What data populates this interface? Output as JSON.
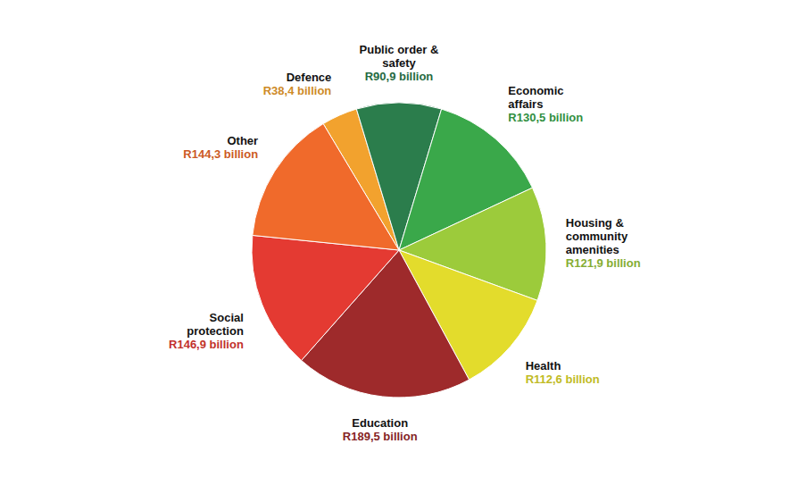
{
  "chart_data": {
    "type": "pie",
    "categories": [
      "Defence",
      "Public order & safety",
      "Economic affairs",
      "Housing & community amenities",
      "Health",
      "Education",
      "Social protection",
      "Other"
    ],
    "values": [
      38.4,
      90.9,
      130.5,
      121.9,
      112.6,
      189.5,
      146.9,
      144.3
    ],
    "value_labels": [
      "R38,4 billion",
      "R90,9 billion",
      "R130,5 billion",
      "R121,9 billion",
      "R112,6 billion",
      "R189,5 billion",
      "R146,9 billion",
      "R144,3 billion"
    ],
    "colors": [
      "#f2a22e",
      "#2b7d4c",
      "#3aa84a",
      "#9ccb3b",
      "#e3dc2c",
      "#9e2a2b",
      "#e43a32",
      "#f06a2b"
    ]
  }
}
